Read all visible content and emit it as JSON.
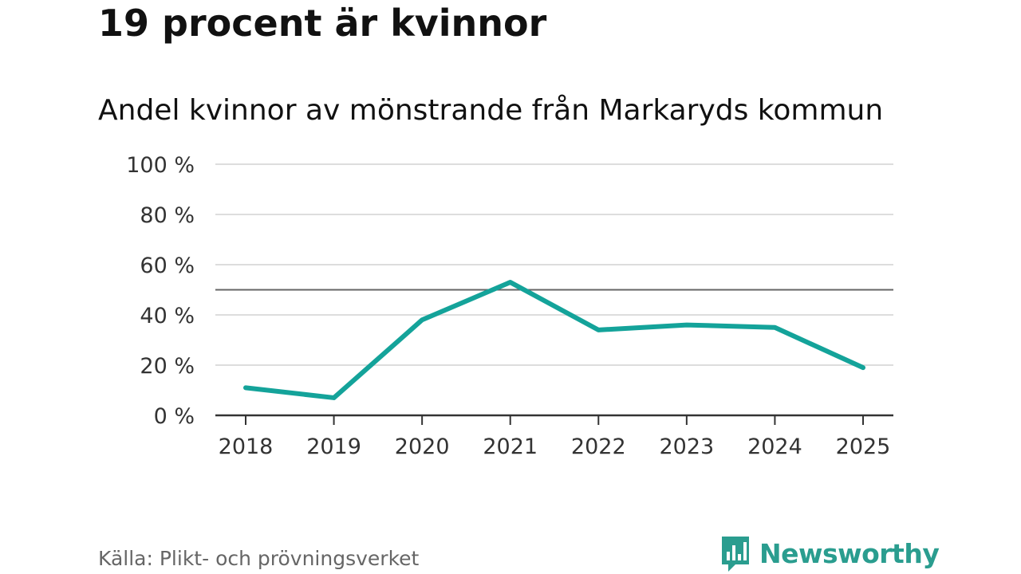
{
  "headline": "19 procent är kvinnor",
  "source": "Källa: Plikt- och prövningsverket",
  "brand": {
    "name": "Newsworthy",
    "color": "#2a9d8f"
  },
  "chart_data": {
    "type": "line",
    "title": "Andel kvinnor av mönstrande från Markaryds kommun",
    "xlabel": "",
    "ylabel": "",
    "categories": [
      "2018",
      "2019",
      "2020",
      "2021",
      "2022",
      "2023",
      "2024",
      "2025"
    ],
    "series": [
      {
        "name": "Andel kvinnor",
        "color": "#14a39a",
        "values": [
          11,
          7,
          38,
          53,
          34,
          36,
          35,
          19
        ]
      }
    ],
    "ylim": [
      0,
      100
    ],
    "yticks": [
      0,
      20,
      40,
      60,
      80,
      100
    ],
    "ytick_labels": [
      "0 %",
      "20 %",
      "40 %",
      "60 %",
      "80 %",
      "100 %"
    ],
    "reference_line": 50,
    "grid": true
  }
}
